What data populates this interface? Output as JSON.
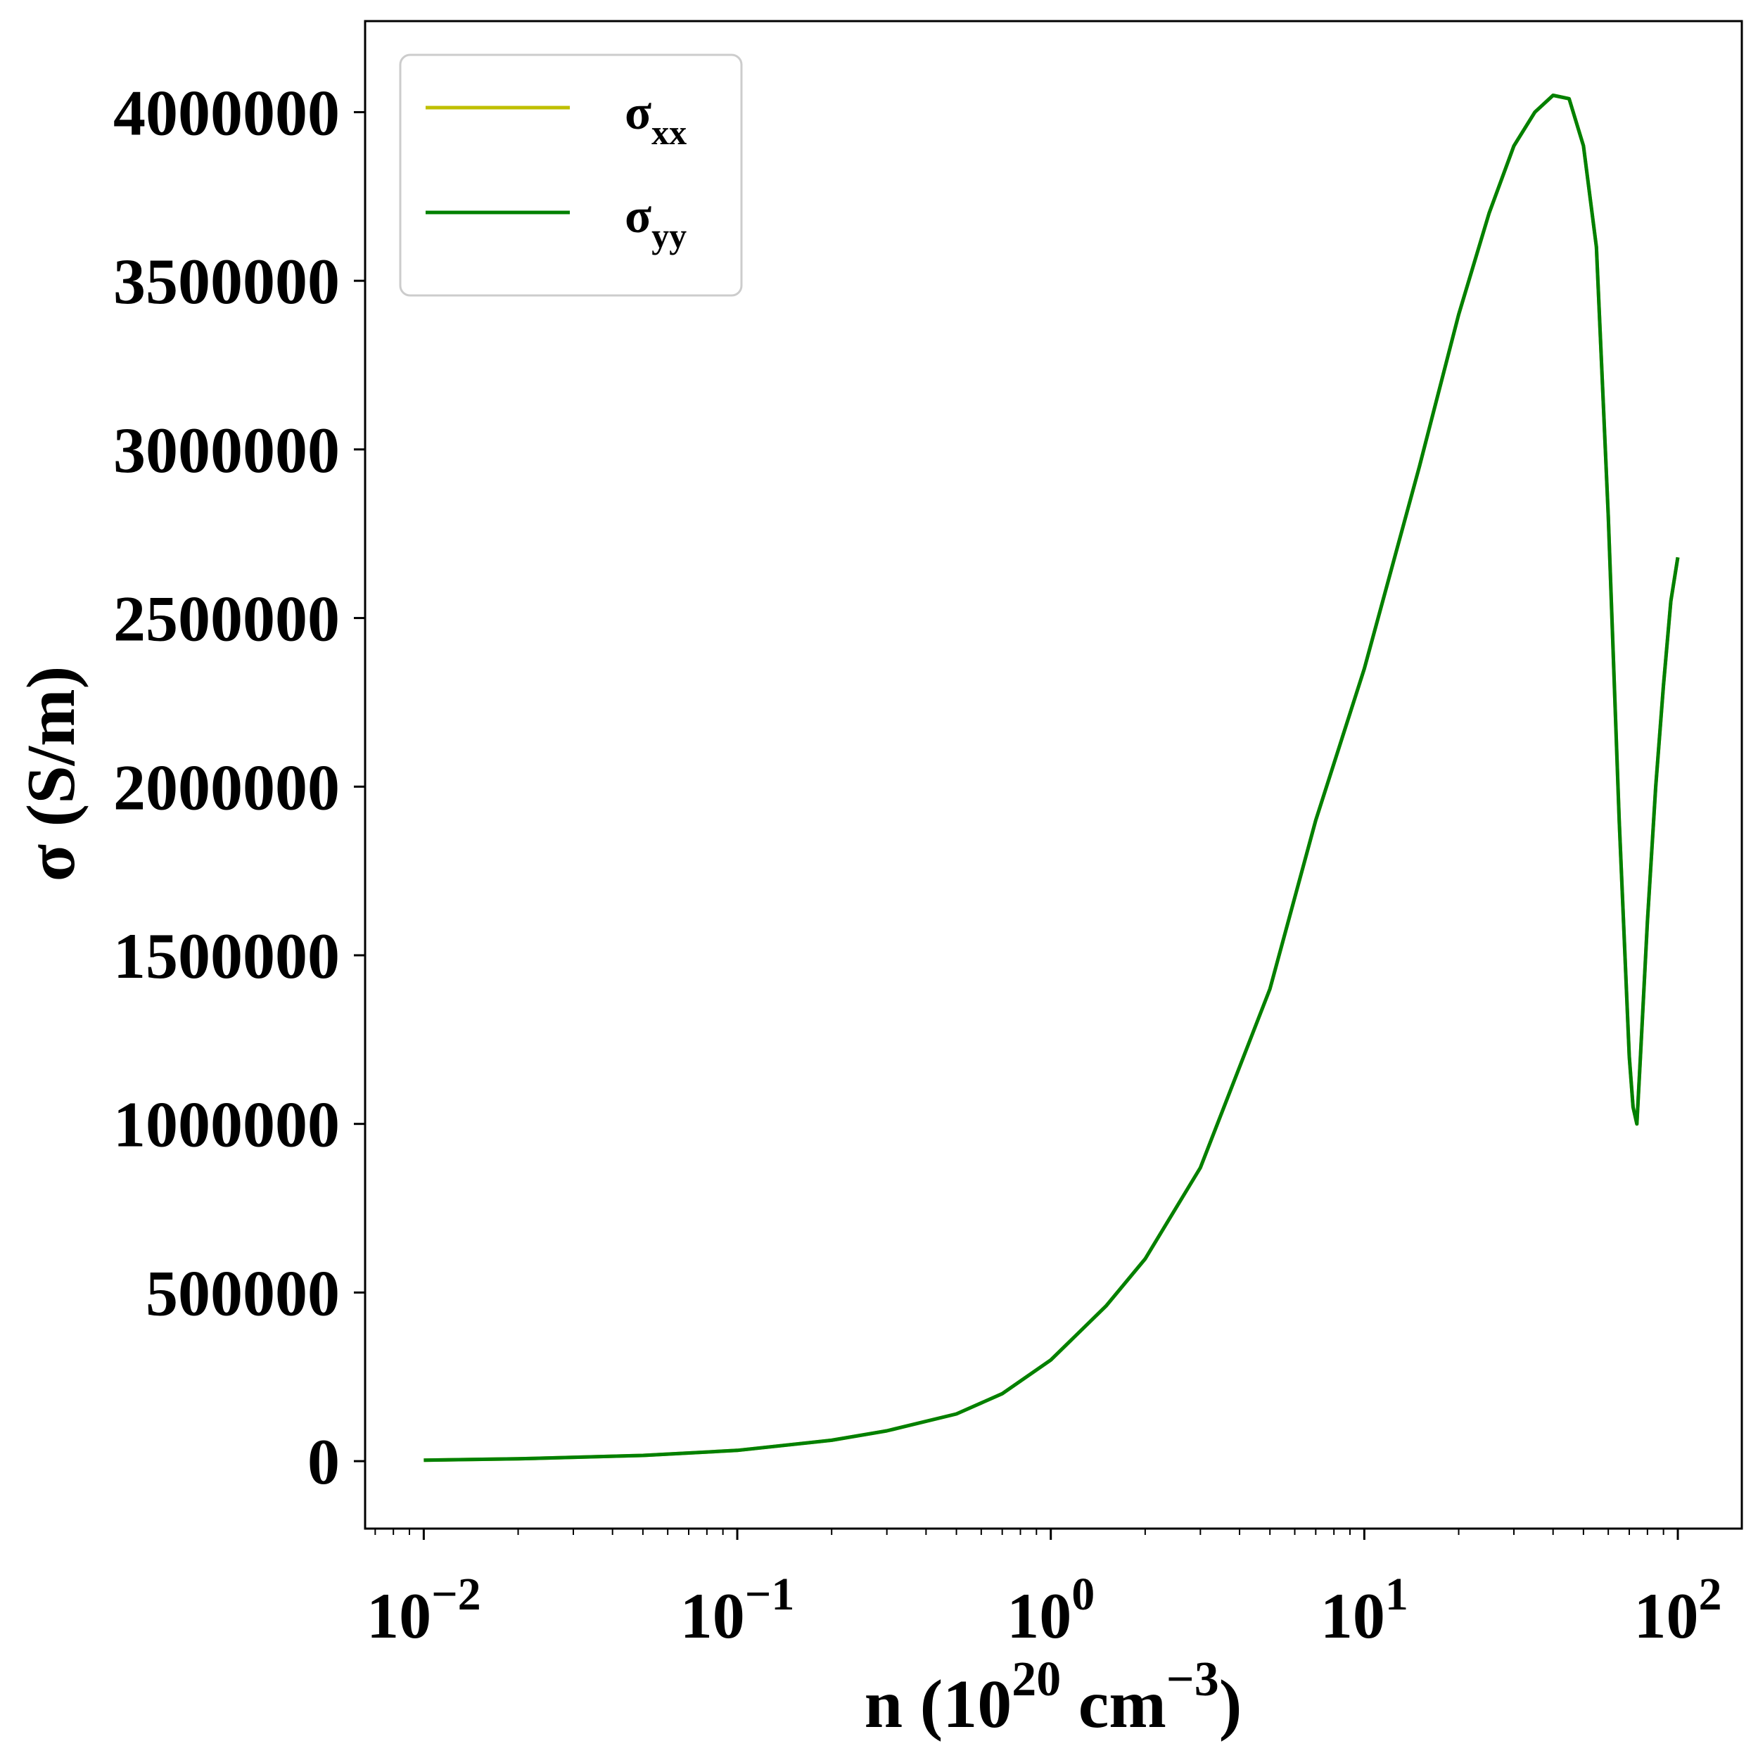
{
  "chart_data": {
    "type": "line",
    "title": "",
    "xlabel": {
      "base": "n (10",
      "exp1": "20",
      "mid": " cm",
      "exp2": "−3",
      "end": ")"
    },
    "ylabel": "σ (S/m)",
    "xscale": "log",
    "xlim": [
      0.0065,
      160
    ],
    "ylim": [
      -200000,
      4270000
    ],
    "grid": false,
    "legend": {
      "placement": "top-left",
      "entries": [
        {
          "base": "σ",
          "sub": "xx",
          "color": "#bfbf00"
        },
        {
          "base": "σ",
          "sub": "yy",
          "color": "#008000"
        }
      ]
    },
    "xticks": [
      {
        "value": 0.01,
        "base": "10",
        "exp": "−2"
      },
      {
        "value": 0.1,
        "base": "10",
        "exp": "−1"
      },
      {
        "value": 1,
        "base": "10",
        "exp": "0"
      },
      {
        "value": 10,
        "base": "10",
        "exp": "1"
      },
      {
        "value": 100,
        "base": "10",
        "exp": "2"
      }
    ],
    "yticks": [
      {
        "value": 0,
        "label": "0"
      },
      {
        "value": 500000,
        "label": "500000"
      },
      {
        "value": 1000000,
        "label": "1000000"
      },
      {
        "value": 1500000,
        "label": "1500000"
      },
      {
        "value": 2000000,
        "label": "2000000"
      },
      {
        "value": 2500000,
        "label": "2500000"
      },
      {
        "value": 3000000,
        "label": "3000000"
      },
      {
        "value": 3500000,
        "label": "3500000"
      },
      {
        "value": 4000000,
        "label": "4000000"
      }
    ],
    "series": [
      {
        "name": "σxx",
        "color": "#bfbf00",
        "x": [
          0.01,
          0.02,
          0.05,
          0.1,
          0.2,
          0.3,
          0.5,
          0.7,
          1,
          1.5,
          2,
          3,
          5,
          7,
          10,
          15,
          20,
          25,
          30,
          35,
          40,
          45,
          50,
          55,
          60,
          65,
          70,
          72,
          74,
          76,
          80,
          85,
          90,
          95,
          100
        ],
        "y": [
          3000,
          7000,
          17000,
          32000,
          62000,
          90000,
          140000,
          200000,
          300000,
          460000,
          600000,
          870000,
          1400000,
          1900000,
          2350000,
          2950000,
          3400000,
          3700000,
          3900000,
          4000000,
          4050000,
          4040000,
          3900000,
          3600000,
          2800000,
          1900000,
          1200000,
          1050000,
          1000000,
          1200000,
          1600000,
          2000000,
          2300000,
          2550000,
          2680000
        ]
      },
      {
        "name": "σyy",
        "color": "#008000",
        "x": [
          0.01,
          0.02,
          0.05,
          0.1,
          0.2,
          0.3,
          0.5,
          0.7,
          1,
          1.5,
          2,
          3,
          5,
          7,
          10,
          15,
          20,
          25,
          30,
          35,
          40,
          45,
          50,
          55,
          60,
          65,
          70,
          72,
          74,
          76,
          80,
          85,
          90,
          95,
          100
        ],
        "y": [
          3000,
          7000,
          17000,
          32000,
          62000,
          90000,
          140000,
          200000,
          300000,
          460000,
          600000,
          870000,
          1400000,
          1900000,
          2350000,
          2950000,
          3400000,
          3700000,
          3900000,
          4000000,
          4050000,
          4040000,
          3900000,
          3600000,
          2800000,
          1900000,
          1200000,
          1050000,
          1000000,
          1200000,
          1600000,
          2000000,
          2300000,
          2550000,
          2680000
        ]
      }
    ]
  }
}
